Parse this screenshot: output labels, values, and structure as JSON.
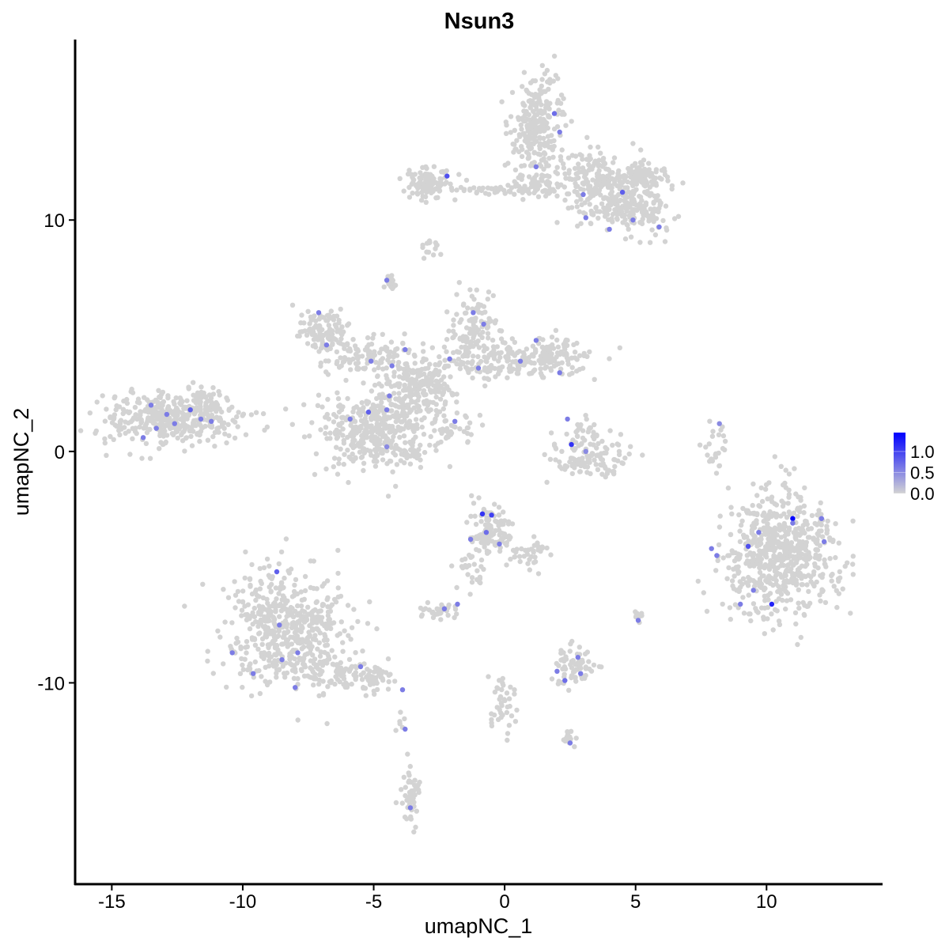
{
  "chart_data": {
    "type": "scatter",
    "title": "Nsun3",
    "xlabel": "umapNC_1",
    "ylabel": "umapNC_2",
    "xlim": [
      -16.4,
      14.4
    ],
    "ylim": [
      -18.7,
      17.8
    ],
    "xticks": [
      -15,
      -10,
      -5,
      0,
      5,
      10
    ],
    "xtick_labels": [
      "-15",
      "-10",
      "-5",
      "0",
      "5",
      "10"
    ],
    "yticks": [
      -10,
      0,
      10
    ],
    "ytick_labels": [
      "-10",
      "0",
      "10"
    ],
    "grid": false,
    "color_scale": {
      "low": "#d3d3d3",
      "high": "#0000ff",
      "min": 0.0,
      "max": 1.45
    },
    "legend": {
      "position": "right",
      "ticks": [
        0.0,
        0.5,
        1.0
      ],
      "tick_labels": [
        "0.0",
        "0.5",
        "1.0"
      ]
    },
    "clusters_unexpressed": [
      {
        "x": -12.75,
        "y": 1.4,
        "sx": 1.3,
        "sy": 0.55,
        "n": 380,
        "value": 0
      },
      {
        "x": -11.5,
        "y": 2.3,
        "sx": 0.4,
        "sy": 0.3,
        "n": 40,
        "value": 0
      },
      {
        "x": -8.4,
        "y": -7.6,
        "sx": 1.1,
        "sy": 1.3,
        "n": 520,
        "value": 0
      },
      {
        "x": -6.5,
        "y": -9.4,
        "sx": 0.9,
        "sy": 0.4,
        "n": 90,
        "value": 0
      },
      {
        "x": -5.0,
        "y": -9.9,
        "sx": 0.6,
        "sy": 0.3,
        "n": 50,
        "value": 0
      },
      {
        "x": 10.5,
        "y": -4.4,
        "sx": 1.05,
        "sy": 1.25,
        "n": 650,
        "value": 0
      },
      {
        "x": 1.2,
        "y": 14.1,
        "sx": 0.55,
        "sy": 0.9,
        "n": 250,
        "value": 0
      },
      {
        "x": 3.6,
        "y": 11.6,
        "sx": 0.8,
        "sy": 0.7,
        "n": 220,
        "value": 0
      },
      {
        "x": 5.0,
        "y": 10.5,
        "sx": 0.7,
        "sy": 0.6,
        "n": 160,
        "value": 0
      },
      {
        "x": 5.3,
        "y": 11.9,
        "sx": 0.5,
        "sy": 0.3,
        "n": 80,
        "value": 0
      },
      {
        "x": -2.9,
        "y": 11.6,
        "sx": 0.45,
        "sy": 0.3,
        "n": 110,
        "value": 0
      },
      {
        "x": -0.6,
        "y": 11.3,
        "sx": 0.9,
        "sy": 0.12,
        "n": 40,
        "value": 0
      },
      {
        "x": 1.3,
        "y": 11.5,
        "sx": 0.5,
        "sy": 0.3,
        "n": 60,
        "value": 0
      },
      {
        "x": -2.8,
        "y": 8.8,
        "sx": 0.2,
        "sy": 0.2,
        "n": 15,
        "value": 0
      },
      {
        "x": -5.0,
        "y": 0.9,
        "sx": 1.1,
        "sy": 0.8,
        "n": 360,
        "value": 0
      },
      {
        "x": -4.0,
        "y": 1.8,
        "sx": 0.6,
        "sy": 1.0,
        "n": 120,
        "value": 0
      },
      {
        "x": -6.9,
        "y": 5.2,
        "sx": 0.5,
        "sy": 0.5,
        "n": 110,
        "value": 0
      },
      {
        "x": -5.3,
        "y": 4.1,
        "sx": 0.9,
        "sy": 0.5,
        "n": 110,
        "value": 0
      },
      {
        "x": -3.0,
        "y": 3.0,
        "sx": 0.5,
        "sy": 0.6,
        "n": 130,
        "value": 0
      },
      {
        "x": -1.2,
        "y": 5.2,
        "sx": 0.45,
        "sy": 0.8,
        "n": 120,
        "value": 0
      },
      {
        "x": -0.8,
        "y": 3.8,
        "sx": 1.2,
        "sy": 0.35,
        "n": 110,
        "value": 0
      },
      {
        "x": 1.6,
        "y": 4.1,
        "sx": 0.9,
        "sy": 0.45,
        "n": 130,
        "value": 0
      },
      {
        "x": -4.4,
        "y": 7.3,
        "sx": 0.15,
        "sy": 0.2,
        "n": 20,
        "value": 0
      },
      {
        "x": -1.8,
        "y": 1.0,
        "sx": 0.6,
        "sy": 0.4,
        "n": 30,
        "value": 0
      },
      {
        "x": 3.2,
        "y": -0.4,
        "sx": 0.75,
        "sy": 0.45,
        "n": 110,
        "value": 0
      },
      {
        "x": 3.1,
        "y": 0.8,
        "sx": 0.3,
        "sy": 0.35,
        "n": 25,
        "value": 0
      },
      {
        "x": -0.5,
        "y": -3.5,
        "sx": 0.45,
        "sy": 0.55,
        "n": 120,
        "value": 0
      },
      {
        "x": 0.9,
        "y": -4.6,
        "sx": 0.4,
        "sy": 0.5,
        "n": 35,
        "value": 0
      },
      {
        "x": -1.2,
        "y": -5.3,
        "sx": 0.35,
        "sy": 0.5,
        "n": 25,
        "value": 0
      },
      {
        "x": 2.6,
        "y": -9.3,
        "sx": 0.4,
        "sy": 0.45,
        "n": 70,
        "value": 0
      },
      {
        "x": -2.5,
        "y": -6.9,
        "sx": 0.35,
        "sy": 0.2,
        "n": 35,
        "value": 0
      },
      {
        "x": -0.1,
        "y": -11.0,
        "sx": 0.3,
        "sy": 0.8,
        "n": 40,
        "value": 0
      },
      {
        "x": -3.6,
        "y": -14.8,
        "sx": 0.18,
        "sy": 0.7,
        "n": 45,
        "value": 0
      },
      {
        "x": 2.4,
        "y": -12.4,
        "sx": 0.2,
        "sy": 0.12,
        "n": 15,
        "value": 0
      },
      {
        "x": 5.1,
        "y": -7.2,
        "sx": 0.12,
        "sy": 0.2,
        "n": 12,
        "value": 0
      },
      {
        "x": 8.0,
        "y": 0.2,
        "sx": 0.2,
        "sy": 0.5,
        "n": 25,
        "value": 0
      },
      {
        "x": -4.0,
        "y": -11.8,
        "sx": 0.1,
        "sy": 0.3,
        "n": 6,
        "value": 0
      }
    ],
    "expressed_points": [
      {
        "x": 11.0,
        "y": -2.9,
        "value": 1.45
      },
      {
        "x": 10.2,
        "y": -6.6,
        "value": 1.2
      },
      {
        "x": 2.55,
        "y": 0.3,
        "value": 1.1
      },
      {
        "x": -0.85,
        "y": -2.7,
        "value": 1.1
      },
      {
        "x": -0.5,
        "y": -2.75,
        "value": 1.0
      },
      {
        "x": -2.2,
        "y": 11.9,
        "value": 0.9
      },
      {
        "x": 9.3,
        "y": -4.1,
        "value": 0.9
      },
      {
        "x": -0.7,
        "y": -3.5,
        "value": 0.7
      },
      {
        "x": 1.9,
        "y": 14.6,
        "value": 0.7
      },
      {
        "x": 4.5,
        "y": 11.2,
        "value": 0.8
      },
      {
        "x": 4.0,
        "y": 9.6,
        "value": 0.6
      },
      {
        "x": 3.0,
        "y": 11.1,
        "value": 0.6
      },
      {
        "x": 1.2,
        "y": 12.3,
        "value": 0.6
      },
      {
        "x": 2.1,
        "y": 13.8,
        "value": 0.6
      },
      {
        "x": 3.1,
        "y": 10.1,
        "value": 0.6
      },
      {
        "x": 5.9,
        "y": 9.7,
        "value": 0.6
      },
      {
        "x": 4.9,
        "y": 10.0,
        "value": 0.6
      },
      {
        "x": -12.0,
        "y": 1.8,
        "value": 0.8
      },
      {
        "x": -12.6,
        "y": 1.2,
        "value": 0.6
      },
      {
        "x": -13.3,
        "y": 1.0,
        "value": 0.6
      },
      {
        "x": -13.8,
        "y": 0.6,
        "value": 0.6
      },
      {
        "x": -11.6,
        "y": 1.4,
        "value": 0.6
      },
      {
        "x": -12.9,
        "y": 1.6,
        "value": 0.6
      },
      {
        "x": -11.2,
        "y": 1.3,
        "value": 0.6
      },
      {
        "x": -13.5,
        "y": 2.0,
        "value": 0.6
      },
      {
        "x": -8.7,
        "y": -5.2,
        "value": 0.8
      },
      {
        "x": -8.0,
        "y": -10.2,
        "value": 0.6
      },
      {
        "x": -8.5,
        "y": -9.0,
        "value": 0.6
      },
      {
        "x": -7.9,
        "y": -8.7,
        "value": 0.6
      },
      {
        "x": -9.6,
        "y": -9.6,
        "value": 0.6
      },
      {
        "x": -10.4,
        "y": -8.7,
        "value": 0.6
      },
      {
        "x": -8.6,
        "y": -7.5,
        "value": 0.6
      },
      {
        "x": -5.5,
        "y": -9.3,
        "value": 0.6
      },
      {
        "x": -3.9,
        "y": -10.3,
        "value": 0.6
      },
      {
        "x": -3.8,
        "y": -12.0,
        "value": 0.6
      },
      {
        "x": -3.6,
        "y": -15.4,
        "value": 0.6
      },
      {
        "x": -4.5,
        "y": 7.4,
        "value": 0.6
      },
      {
        "x": -7.1,
        "y": 6.0,
        "value": 0.6
      },
      {
        "x": -6.8,
        "y": 4.6,
        "value": 0.6
      },
      {
        "x": -5.1,
        "y": 3.9,
        "value": 0.6
      },
      {
        "x": -4.3,
        "y": 3.7,
        "value": 0.6
      },
      {
        "x": -3.8,
        "y": 4.4,
        "value": 0.6
      },
      {
        "x": -4.4,
        "y": 2.4,
        "value": 0.6
      },
      {
        "x": -4.5,
        "y": 1.8,
        "value": 0.6
      },
      {
        "x": -5.2,
        "y": 1.7,
        "value": 0.8
      },
      {
        "x": -5.9,
        "y": 1.4,
        "value": 0.6
      },
      {
        "x": -4.5,
        "y": 0.2,
        "value": 0.5
      },
      {
        "x": -1.2,
        "y": 6.0,
        "value": 0.6
      },
      {
        "x": -0.8,
        "y": 5.5,
        "value": 0.6
      },
      {
        "x": -1.0,
        "y": 3.6,
        "value": 0.6
      },
      {
        "x": 0.6,
        "y": 3.9,
        "value": 0.6
      },
      {
        "x": 1.2,
        "y": 4.8,
        "value": 0.6
      },
      {
        "x": 2.1,
        "y": 3.4,
        "value": 0.6
      },
      {
        "x": -1.9,
        "y": 1.3,
        "value": 0.6
      },
      {
        "x": -2.1,
        "y": 4.0,
        "value": 0.6
      },
      {
        "x": 2.4,
        "y": 1.4,
        "value": 0.6
      },
      {
        "x": 3.1,
        "y": 0.0,
        "value": 0.5
      },
      {
        "x": -1.3,
        "y": -3.8,
        "value": 0.6
      },
      {
        "x": -0.2,
        "y": -4.0,
        "value": 0.6
      },
      {
        "x": -1.8,
        "y": -6.6,
        "value": 0.6
      },
      {
        "x": -2.3,
        "y": -6.8,
        "value": 0.6
      },
      {
        "x": 2.0,
        "y": -9.5,
        "value": 0.6
      },
      {
        "x": 2.3,
        "y": -9.9,
        "value": 0.7
      },
      {
        "x": 2.8,
        "y": -8.9,
        "value": 0.6
      },
      {
        "x": 2.9,
        "y": -9.6,
        "value": 0.6
      },
      {
        "x": 2.5,
        "y": -12.6,
        "value": 0.6
      },
      {
        "x": 5.1,
        "y": -7.3,
        "value": 0.6
      },
      {
        "x": 7.9,
        "y": -4.2,
        "value": 0.6
      },
      {
        "x": 8.1,
        "y": -4.5,
        "value": 0.6
      },
      {
        "x": 9.0,
        "y": -6.6,
        "value": 0.6
      },
      {
        "x": 9.7,
        "y": -3.5,
        "value": 0.6
      },
      {
        "x": 11.0,
        "y": -3.1,
        "value": 0.6
      },
      {
        "x": 12.2,
        "y": -3.9,
        "value": 0.6
      },
      {
        "x": 12.1,
        "y": -2.9,
        "value": 0.6
      },
      {
        "x": 9.5,
        "y": -6.0,
        "value": 0.6
      },
      {
        "x": 8.2,
        "y": 1.2,
        "value": 0.5
      }
    ]
  }
}
